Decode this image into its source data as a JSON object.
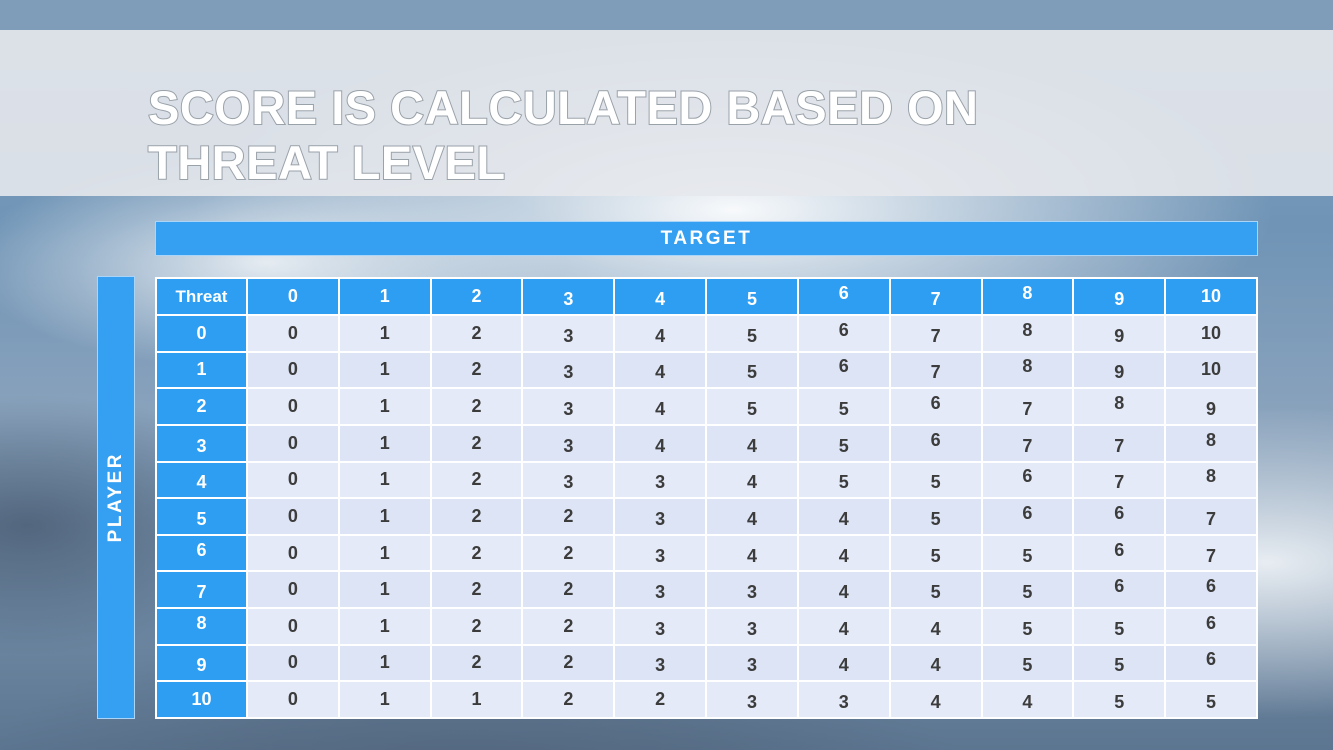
{
  "slide": {
    "title_line1": "SCORE IS CALCULATED BASED ON",
    "title_line2": "THREAT LEVEL"
  },
  "chart_data": {
    "type": "table",
    "title": "Score is calculated based on threat level",
    "x_axis_label": "TARGET",
    "y_axis_label": "PLAYER",
    "corner_label": "Threat",
    "column_headers": [
      "0",
      "1",
      "2",
      "3",
      "4",
      "5",
      "6",
      "7",
      "8",
      "9",
      "10"
    ],
    "rows": [
      {
        "header": "0",
        "cells": [
          "0",
          "1",
          "2",
          "3",
          "4",
          "5",
          "6",
          "7",
          "8",
          "9",
          "10"
        ]
      },
      {
        "header": "1",
        "cells": [
          "0",
          "1",
          "2",
          "3",
          "4",
          "5",
          "6",
          "7",
          "8",
          "9",
          "10"
        ]
      },
      {
        "header": "2",
        "cells": [
          "0",
          "1",
          "2",
          "3",
          "4",
          "5",
          "5",
          "6",
          "7",
          "8",
          "9"
        ]
      },
      {
        "header": "3",
        "cells": [
          "0",
          "1",
          "2",
          "3",
          "4",
          "4",
          "5",
          "6",
          "7",
          "7",
          "8"
        ]
      },
      {
        "header": "4",
        "cells": [
          "0",
          "1",
          "2",
          "3",
          "3",
          "4",
          "5",
          "5",
          "6",
          "7",
          "8"
        ]
      },
      {
        "header": "5",
        "cells": [
          "0",
          "1",
          "2",
          "2",
          "3",
          "4",
          "4",
          "5",
          "6",
          "6",
          "7"
        ]
      },
      {
        "header": "6",
        "cells": [
          "0",
          "1",
          "2",
          "2",
          "3",
          "4",
          "4",
          "5",
          "5",
          "6",
          "7"
        ]
      },
      {
        "header": "7",
        "cells": [
          "0",
          "1",
          "2",
          "2",
          "3",
          "3",
          "4",
          "5",
          "5",
          "6",
          "6"
        ]
      },
      {
        "header": "8",
        "cells": [
          "0",
          "1",
          "2",
          "2",
          "3",
          "3",
          "4",
          "4",
          "5",
          "5",
          "6"
        ]
      },
      {
        "header": "9",
        "cells": [
          "0",
          "1",
          "2",
          "2",
          "3",
          "3",
          "4",
          "4",
          "5",
          "5",
          "6"
        ]
      },
      {
        "header": "10",
        "cells": [
          "0",
          "1",
          "1",
          "2",
          "2",
          "3",
          "3",
          "4",
          "4",
          "5",
          "5"
        ]
      }
    ]
  },
  "colors": {
    "accent_blue": "#35A0F2",
    "header_cell_blue": "#2E9EF2",
    "row_odd": "#E4EAF8",
    "row_even": "#DCE4F5",
    "cell_text": "#3C3C3C",
    "top_bar": "#7F9CB9"
  }
}
